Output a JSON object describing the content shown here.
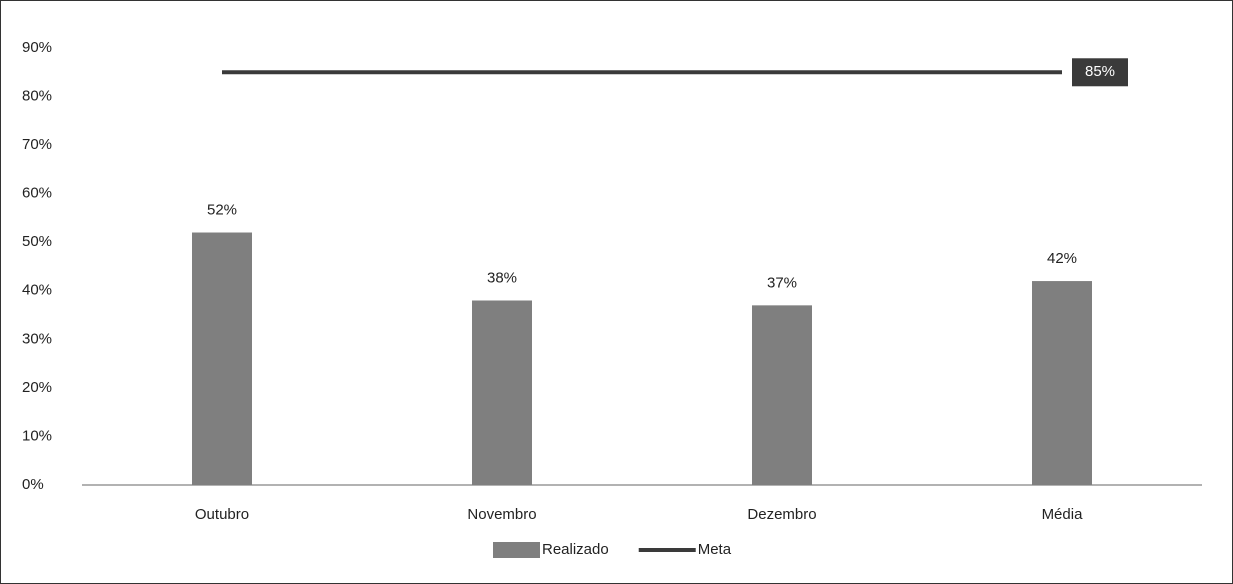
{
  "chart_data": {
    "type": "bar",
    "categories": [
      "Outubro",
      "Novembro",
      "Dezembro",
      "Média"
    ],
    "series": [
      {
        "name": "Realizado",
        "type": "bar",
        "color": "#7f7f7f",
        "values": [
          52,
          38,
          37,
          42
        ],
        "value_labels": [
          "52%",
          "38%",
          "37%",
          "42%"
        ]
      },
      {
        "name": "Meta",
        "type": "line",
        "color": "#3a3a3a",
        "values": [
          85,
          85,
          85,
          85
        ],
        "value_labels": [
          null,
          null,
          null,
          "85%"
        ]
      }
    ],
    "ylim": [
      0,
      90
    ],
    "yticks": [
      {
        "value": 0,
        "label": "0%"
      },
      {
        "value": 10,
        "label": "10%"
      },
      {
        "value": 20,
        "label": "20%"
      },
      {
        "value": 30,
        "label": "30%"
      },
      {
        "value": 40,
        "label": "40%"
      },
      {
        "value": 50,
        "label": "50%"
      },
      {
        "value": 60,
        "label": "60%"
      },
      {
        "value": 70,
        "label": "70%"
      },
      {
        "value": 80,
        "label": "80%"
      },
      {
        "value": 90,
        "label": "90%"
      }
    ],
    "grid": false,
    "legend": "bottom"
  }
}
